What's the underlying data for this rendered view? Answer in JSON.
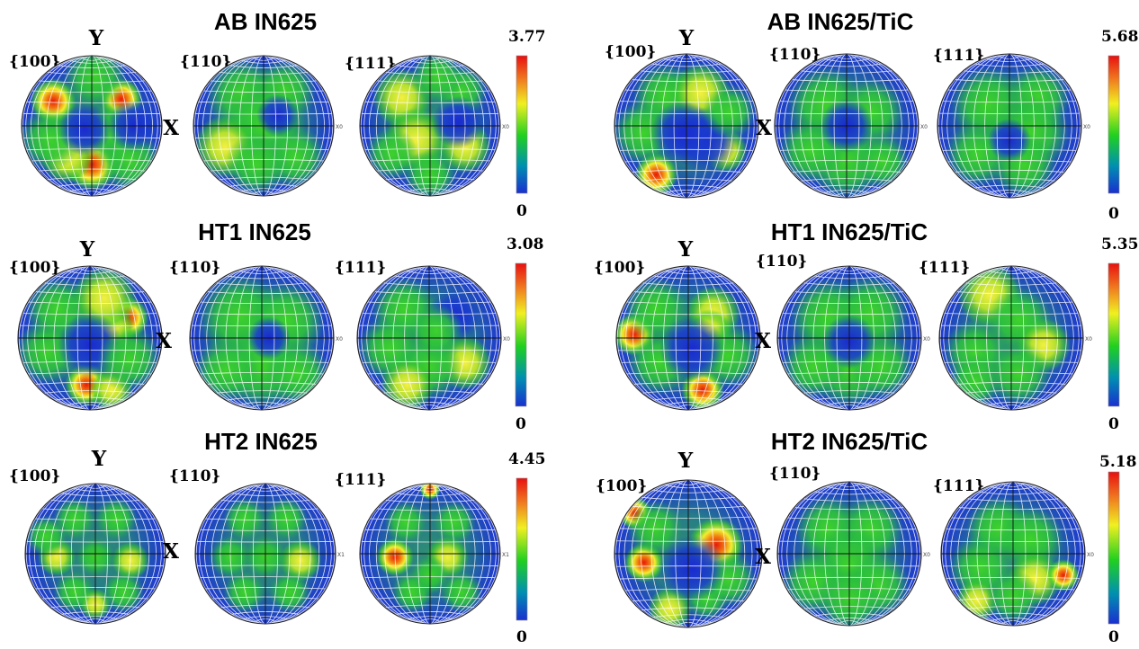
{
  "panels": [
    {
      "title": "AB IN625",
      "scale_max": "3.77",
      "scale_min": "0",
      "poles": [
        "{100}",
        "{110}",
        "{111}"
      ],
      "axis_y": "Y",
      "axis_x": "X",
      "x0_labels": [
        "X0",
        "X0"
      ]
    },
    {
      "title": "AB IN625/TiC",
      "scale_max": "5.68",
      "scale_min": "0",
      "poles": [
        "{100}",
        "{110}",
        "{111}"
      ],
      "axis_y": "Y",
      "axis_x": "X",
      "x0_labels": [
        "X0",
        "X0"
      ]
    },
    {
      "title": "HT1 IN625",
      "scale_max": "3.08",
      "scale_min": "0",
      "poles": [
        "{100}",
        "{110}",
        "{111}"
      ],
      "axis_y": "Y",
      "axis_x": "X",
      "x0_labels": [
        "X0",
        "X0"
      ]
    },
    {
      "title": "HT1 IN625/TiC",
      "scale_max": "5.35",
      "scale_min": "0",
      "poles": [
        "{100}",
        "{110}",
        "{111}"
      ],
      "axis_y": "Y",
      "axis_x": "X",
      "x0_labels": [
        "X0",
        "X0"
      ]
    },
    {
      "title": "HT2 IN625",
      "scale_max": "4.45",
      "scale_min": "0",
      "poles": [
        "{100}",
        "{110}",
        "{111}"
      ],
      "axis_y": "Y",
      "axis_x": "X",
      "x0_labels": [
        "X1",
        "X1"
      ]
    },
    {
      "title": "HT2 IN625/TiC",
      "scale_max": "5.18",
      "scale_min": "0",
      "poles": [
        "{100}",
        "{110}",
        "{111}"
      ],
      "axis_y": "Y",
      "axis_x": "X",
      "x0_labels": [
        "X0",
        "X0"
      ]
    }
  ],
  "colors": {
    "background_low": "#1530c8",
    "mid": "#22c832",
    "high_yellow": "#f5f032",
    "peak_red": "#e8200c",
    "grid": "#ffffff",
    "colorbar_stops": [
      "#1a2fd0",
      "#00a0a0",
      "#20d020",
      "#f0f020",
      "#f08020",
      "#e81010"
    ]
  },
  "figure_type": "pole-figure-grid"
}
